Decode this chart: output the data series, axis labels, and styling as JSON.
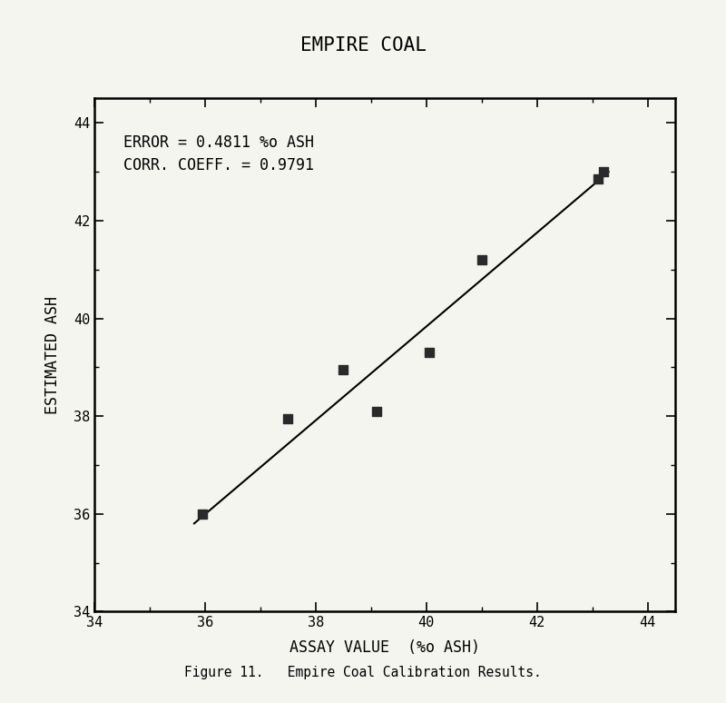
{
  "title": "EMPIRE COAL",
  "xlabel": "ASSAY VALUE  (%o ASH)",
  "ylabel": "ESTIMATED ASH",
  "annotation_line1": "ERROR = 0.4811 %o ASH",
  "annotation_line2": "CORR. COEFF. = 0.9791",
  "scatter_x": [
    35.95,
    37.5,
    38.5,
    39.1,
    40.05,
    41.0,
    43.1,
    43.2
  ],
  "scatter_y": [
    36.0,
    37.95,
    38.95,
    38.1,
    39.3,
    41.2,
    42.85,
    43.0
  ],
  "line_x": [
    35.8,
    43.3
  ],
  "line_y": [
    35.8,
    43.0
  ],
  "xlim": [
    34,
    44.5
  ],
  "ylim": [
    34,
    44.5
  ],
  "xticks": [
    34,
    36,
    38,
    40,
    42,
    44
  ],
  "yticks": [
    34,
    36,
    38,
    40,
    42,
    44
  ],
  "figure_caption": "Figure 11.   Empire Coal Calibration Results.",
  "bg_color": "#f5f5f0",
  "text_color": "#000000",
  "marker_color": "#2a2a2a",
  "line_color": "#000000",
  "title_fontsize": 15,
  "label_fontsize": 12,
  "tick_fontsize": 11,
  "annotation_fontsize": 12,
  "caption_fontsize": 10.5
}
